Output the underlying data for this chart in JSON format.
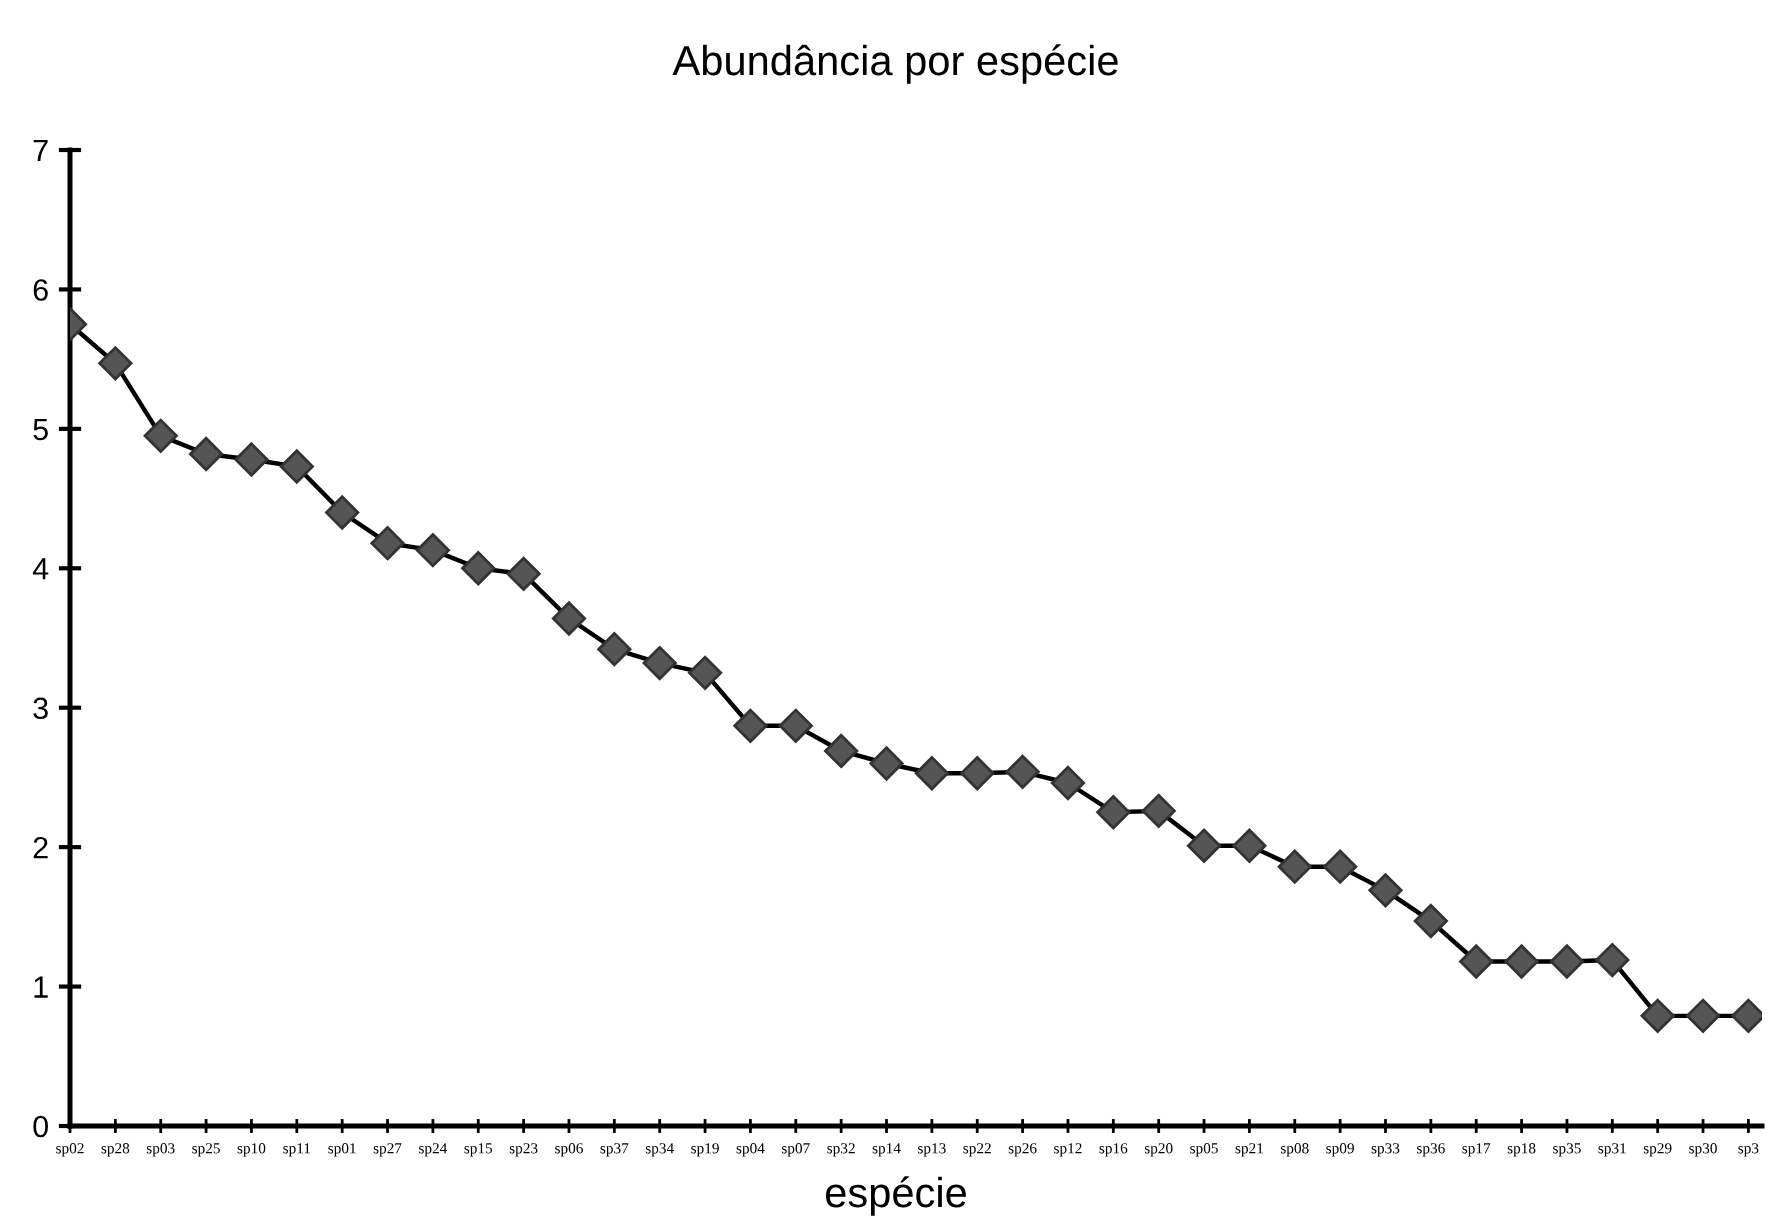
{
  "chart_data": {
    "type": "line",
    "title": "Abundância por espécie",
    "xlabel": "espécie",
    "categories": [
      "sp02",
      "sp28",
      "sp03",
      "sp25",
      "sp10",
      "sp11",
      "sp01",
      "sp27",
      "sp24",
      "sp15",
      "sp23",
      "sp06",
      "sp37",
      "sp34",
      "sp19",
      "sp04",
      "sp07",
      "sp32",
      "sp14",
      "sp13",
      "sp22",
      "sp26",
      "sp12",
      "sp16",
      "sp20",
      "sp05",
      "sp21",
      "sp08",
      "sp09",
      "sp33",
      "sp36",
      "sp17",
      "sp18",
      "sp35",
      "sp31",
      "sp29",
      "sp30",
      "sp3"
    ],
    "series": [
      {
        "color": "#555555",
        "values": [
          5.75,
          5.47,
          4.95,
          4.82,
          4.78,
          4.73,
          4.4,
          4.18,
          4.13,
          4.0,
          3.96,
          3.64,
          3.42,
          3.32,
          3.25,
          2.87,
          2.87,
          2.69,
          2.6,
          2.53,
          2.53,
          2.54,
          2.46,
          2.25,
          2.26,
          2.01,
          2.01,
          1.86,
          1.86,
          1.69,
          1.47,
          1.18,
          1.18,
          1.18,
          1.19,
          0.79,
          0.79,
          0.79
        ]
      }
    ],
    "ylim": [
      0,
      7
    ],
    "yticks": [
      0,
      1,
      2,
      3,
      4,
      5,
      6,
      7
    ],
    "marker": "diamond",
    "line_style": "solid",
    "grid": false,
    "legend": false
  }
}
